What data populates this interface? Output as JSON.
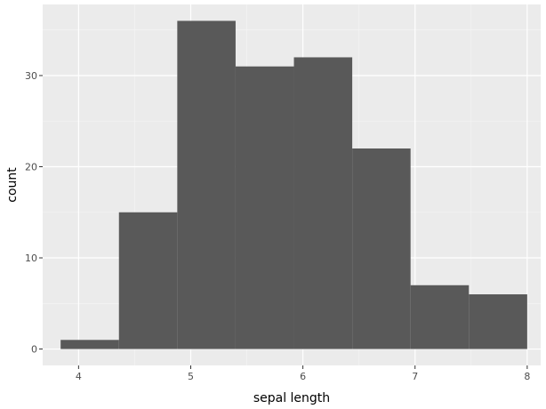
{
  "chart_data": {
    "type": "histogram",
    "title": "",
    "xlabel": "sepal length",
    "ylabel": "count",
    "xlim": [
      3.68,
      8.12
    ],
    "ylim": [
      -1.8,
      37.8
    ],
    "x_ticks": [
      4,
      5,
      6,
      7,
      8
    ],
    "x_tick_labels": [
      "4",
      "5",
      "6",
      "7",
      "8"
    ],
    "x_minor_ticks": [
      4.5,
      5.5,
      6.5,
      7.5
    ],
    "y_ticks": [
      0,
      10,
      20,
      30
    ],
    "y_tick_labels": [
      "0",
      "10",
      "20",
      "30"
    ],
    "y_minor_ticks": [
      5,
      15,
      25,
      35
    ],
    "grid": true,
    "bins": [
      {
        "x0": 3.84,
        "x1": 4.36,
        "count": 1
      },
      {
        "x0": 4.36,
        "x1": 4.88,
        "count": 15
      },
      {
        "x0": 4.88,
        "x1": 5.4,
        "count": 36
      },
      {
        "x0": 5.4,
        "x1": 5.92,
        "count": 31
      },
      {
        "x0": 5.92,
        "x1": 6.44,
        "count": 32
      },
      {
        "x0": 6.44,
        "x1": 6.96,
        "count": 22
      },
      {
        "x0": 6.96,
        "x1": 7.48,
        "count": 7
      },
      {
        "x0": 7.48,
        "x1": 8.0,
        "count": 6
      }
    ],
    "colors": {
      "panel": "#ebebeb",
      "grid_major": "#ffffff",
      "grid_minor": "#f5f5f5",
      "bar": "#595959",
      "tick": "#333333"
    }
  }
}
